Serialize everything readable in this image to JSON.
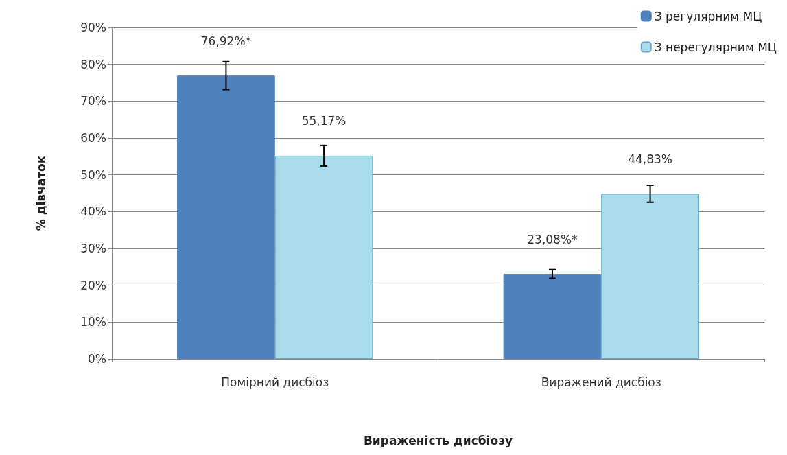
{
  "chart_data": {
    "type": "bar",
    "xlabel": "Вираженість дисбіозу",
    "ylabel": "% дівчаток",
    "categories": [
      "Помірний дисбіоз",
      "Виражений дисбіоз"
    ],
    "series": [
      {
        "name": "З регулярним МЦ",
        "color": "#4f81bd",
        "values": [
          76.92,
          23.08
        ],
        "errors": [
          3.8,
          1.2
        ],
        "value_labels": [
          "76,92%*",
          "23,08%*"
        ]
      },
      {
        "name": "З нерегулярним МЦ",
        "color": "#a9dcea",
        "values": [
          55.17,
          44.83
        ],
        "errors": [
          2.8,
          2.3
        ],
        "value_labels": [
          "55,17%",
          "44,83%"
        ]
      }
    ],
    "ylim": [
      0,
      90
    ],
    "yticks": [
      {
        "value": 0,
        "label": "0%"
      },
      {
        "value": 10,
        "label": "10%"
      },
      {
        "value": 20,
        "label": "20%"
      },
      {
        "value": 30,
        "label": "30%"
      },
      {
        "value": 40,
        "label": "40%"
      },
      {
        "value": 50,
        "label": "50%"
      },
      {
        "value": 60,
        "label": "60%"
      },
      {
        "value": 70,
        "label": "70%"
      },
      {
        "value": 80,
        "label": "80%"
      },
      {
        "value": 90,
        "label": "90%"
      }
    ],
    "grid": "y",
    "legend": "top right"
  }
}
